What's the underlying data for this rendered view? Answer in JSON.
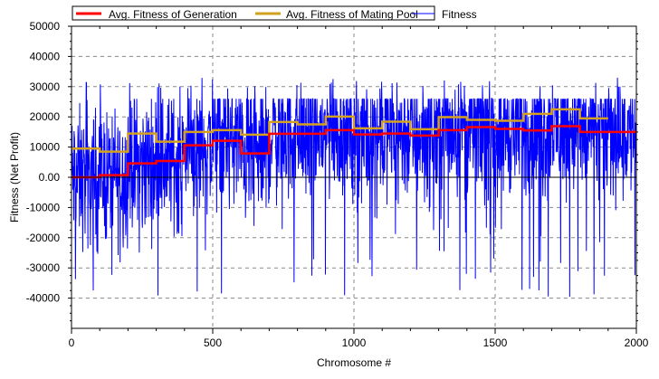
{
  "chart_data": {
    "type": "line",
    "title": "",
    "xlabel": "Chromosome #",
    "ylabel": "Fitness (Net Profit)",
    "xlim": [
      0,
      2000
    ],
    "ylim": [
      -50000,
      50000
    ],
    "x_ticks": [
      "0",
      "500",
      "1000",
      "1500",
      "2000"
    ],
    "y_ticks": [
      "50000",
      "40000",
      "30000",
      "20000",
      "10000",
      "0.00",
      "-10000",
      "-20000",
      "-30000",
      "-40000"
    ],
    "grid": true,
    "legend_position": "top",
    "series": [
      {
        "name": "Avg. Fitness of Generation",
        "color": "#ff0000",
        "step_size": 100,
        "values": [
          0,
          700,
          4600,
          5400,
          10600,
          12100,
          7900,
          14400,
          14400,
          15600,
          14200,
          14500,
          13800,
          15600,
          16600,
          16000,
          15500,
          16900,
          15000,
          15000
        ]
      },
      {
        "name": "Avg. Fitness of Mating Pool",
        "color": "#d4a020",
        "step_size": 100,
        "values": [
          9500,
          8500,
          14500,
          11800,
          15000,
          15600,
          14100,
          18300,
          17500,
          20100,
          16200,
          18400,
          15900,
          19900,
          19000,
          18700,
          21000,
          22500,
          19500
        ]
      },
      {
        "name": "Fitness",
        "color": "#0000ff",
        "points": 2000,
        "range": [
          -40000,
          33000
        ],
        "typical_max": 26000
      }
    ]
  }
}
